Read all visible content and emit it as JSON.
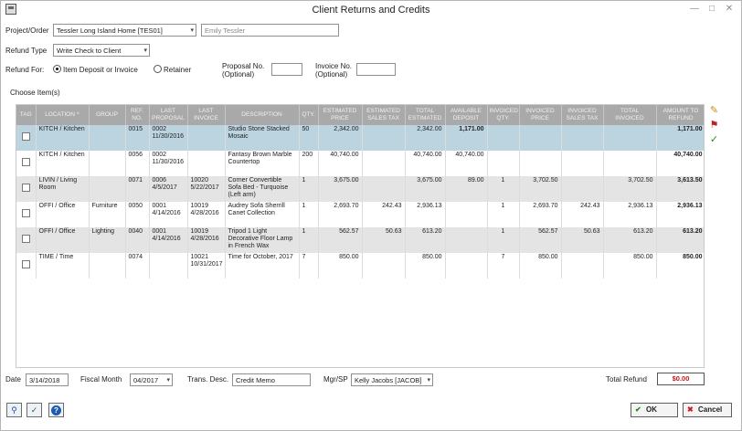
{
  "window": {
    "title": "Client Returns and Credits"
  },
  "form": {
    "project_label": "Project/Order",
    "project_value": "Tessler Long Island Home [TES01]",
    "client_placeholder": "Emily Tessler",
    "refund_type_label": "Refund Type",
    "refund_type_value": "Write Check to Client",
    "refund_for_label": "Refund For:",
    "radio_item_label": "Item Deposit or Invoice",
    "radio_retainer_label": "Retainer",
    "proposal_no_label": "Proposal No.",
    "proposal_no_sub": "(Optional)",
    "invoice_no_label": "Invoice No.",
    "invoice_no_sub": "(Optional)",
    "choose_items_label": "Choose Item(s)"
  },
  "grid": {
    "headers": [
      "TAG",
      "LOCATION ^",
      "GROUP",
      "REF. NO.",
      "LAST PROPOSAL",
      "LAST INVOICE",
      "DESCRIPTION",
      "QTY.",
      "ESTIMATED PRICE",
      "ESTIMATED SALES TAX",
      "TOTAL ESTIMATED",
      "AVAILABLE DEPOSIT",
      "INVOICED QTY.",
      "INVOICED PRICE",
      "INVOICED SALES TAX",
      "TOTAL INVOICED",
      "AMOUNT TO REFUND"
    ],
    "rows": [
      {
        "location": "KITCH / Kitchen",
        "group": "",
        "ref": "0015",
        "proposal": "0002\n11/30/2016",
        "invoice": "",
        "description": "Studio Stone Stacked Mosaic",
        "qty": "50",
        "est_price": "2,342.00",
        "est_tax": "",
        "total_est": "2,342.00",
        "avail_deposit": "1,171.00",
        "inv_qty": "",
        "inv_price": "",
        "inv_tax": "",
        "total_inv": "",
        "refund": "1,171.00"
      },
      {
        "location": "KITCH / Kitchen",
        "group": "",
        "ref": "0056",
        "proposal": "0002\n11/30/2016",
        "invoice": "",
        "description": "Fantasy Brown Marble Countertop",
        "qty": "200",
        "est_price": "40,740.00",
        "est_tax": "",
        "total_est": "40,740.00",
        "avail_deposit": "40,740.00",
        "inv_qty": "",
        "inv_price": "",
        "inv_tax": "",
        "total_inv": "",
        "refund": "40,740.00"
      },
      {
        "location": "LIVIN / Living Room",
        "group": "",
        "ref": "0071",
        "proposal": "0006\n4/5/2017",
        "invoice": "10020\n5/22/2017",
        "description": "Corner Convertible Sofa Bed - Turquoise (Left arm)",
        "qty": "1",
        "est_price": "3,675.00",
        "est_tax": "",
        "total_est": "3,675.00",
        "avail_deposit": "89.00",
        "inv_qty": "1",
        "inv_price": "3,702.50",
        "inv_tax": "",
        "total_inv": "3,702.50",
        "refund": "3,613.50"
      },
      {
        "location": "OFFI / Office",
        "group": "Furniture",
        "ref": "0050",
        "proposal": "0001\n4/14/2016",
        "invoice": "10019\n4/28/2016",
        "description": "Audrey Sofa Sherrill Canet Collection",
        "qty": "1",
        "est_price": "2,693.70",
        "est_tax": "242.43",
        "total_est": "2,936.13",
        "avail_deposit": "",
        "inv_qty": "1",
        "inv_price": "2,693.70",
        "inv_tax": "242.43",
        "total_inv": "2,936.13",
        "refund": "2,936.13"
      },
      {
        "location": "OFFI / Office",
        "group": "Lighting",
        "ref": "0040",
        "proposal": "0001\n4/14/2016",
        "invoice": "10019\n4/28/2016",
        "description": "Tripod 1 Light Decorative Floor Lamp in French Wax",
        "qty": "1",
        "est_price": "562.57",
        "est_tax": "50.63",
        "total_est": "613.20",
        "avail_deposit": "",
        "inv_qty": "1",
        "inv_price": "562.57",
        "inv_tax": "50.63",
        "total_inv": "613.20",
        "refund": "613.20"
      },
      {
        "location": "TIME / Time",
        "group": "",
        "ref": "0074",
        "proposal": "",
        "invoice": "10021\n10/31/2017",
        "description": "Time for October, 2017",
        "qty": "7",
        "est_price": "850.00",
        "est_tax": "",
        "total_est": "850.00",
        "avail_deposit": "",
        "inv_qty": "7",
        "inv_price": "850.00",
        "inv_tax": "",
        "total_inv": "850.00",
        "refund": "850.00"
      }
    ]
  },
  "footer": {
    "date_label": "Date",
    "date_value": "3/14/2018",
    "fiscal_month_label": "Fiscal Month",
    "fiscal_month_value": "04/2017",
    "trans_desc_label": "Trans. Desc.",
    "trans_desc_value": "Credit Memo",
    "mgr_label": "Mgr/SP",
    "mgr_value": "Kelly Jacobs [JACOB]",
    "total_refund_label": "Total Refund",
    "total_refund_value": "$0.00",
    "ok_label": "OK",
    "cancel_label": "Cancel"
  },
  "icons": {
    "edit": "pencil-icon",
    "tag": "tag-icon",
    "check": "checkmark-icon",
    "search": "search-icon",
    "spellcheck": "spellcheck-icon",
    "help": "help-icon"
  },
  "colors": {
    "header_bg": "#a9a9a9",
    "selected_row": "#bcd3e0",
    "invoiced_blue": "#1a1ad0",
    "refund_red": "#c01818"
  }
}
